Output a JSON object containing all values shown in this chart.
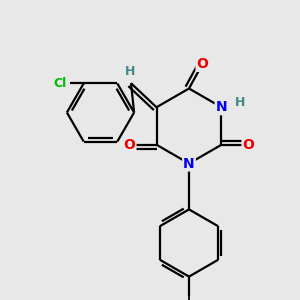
{
  "bg_color": "#e8e8e8",
  "atom_colors": {
    "C": "#000000",
    "N": "#0000ee",
    "O": "#ee0000",
    "H": "#448888",
    "Cl": "#00bb00"
  },
  "bond_color": "#000000",
  "bond_width": 1.6,
  "figsize": [
    3.0,
    3.0
  ],
  "dpi": 100,
  "xlim": [
    0,
    10
  ],
  "ylim": [
    0,
    10
  ]
}
